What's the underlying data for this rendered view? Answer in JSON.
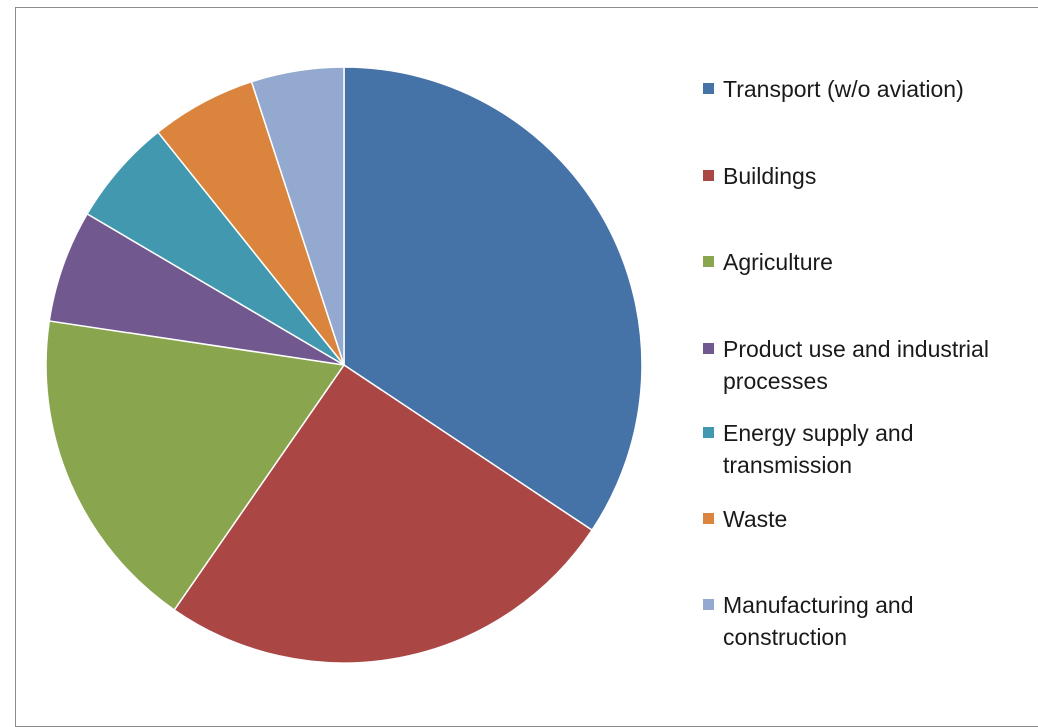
{
  "chart_data": {
    "type": "pie",
    "title": "",
    "start_angle_deg": 0,
    "direction": "clockwise",
    "legend_position": "right",
    "slices": [
      {
        "label": "Transport (w/o aviation)",
        "value": 34.9,
        "color": "#4572a7"
      },
      {
        "label": "Buildings",
        "value": 25.7,
        "color": "#aa4643"
      },
      {
        "label": "Agriculture",
        "value": 18.0,
        "color": "#89a54e"
      },
      {
        "label": "Product use and industrial processes",
        "value": 6.2,
        "color": "#71588f"
      },
      {
        "label": "Energy supply and transmission",
        "value": 5.9,
        "color": "#4198af"
      },
      {
        "label": "Waste",
        "value": 5.8,
        "color": "#db843d"
      },
      {
        "label": "Manufacturing and construction",
        "value": 5.1,
        "color": "#93a9cf"
      }
    ]
  }
}
